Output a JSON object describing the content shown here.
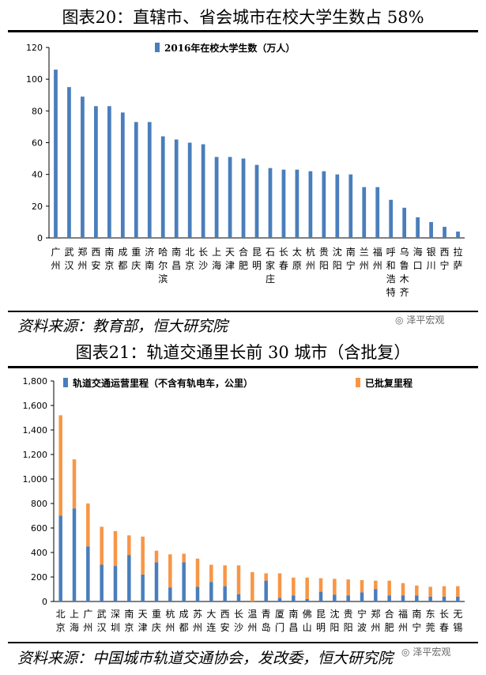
{
  "figure20": {
    "title": "图表20：直辖市、省会城市在校大学生数占 58%",
    "source": "资料来源：教育部，恒大研究院",
    "watermark": "泽平宏观",
    "chart_data": {
      "type": "bar",
      "legend_position": "top-center",
      "grid": false,
      "ylim": [
        0,
        120
      ],
      "yticks": [
        0,
        20,
        40,
        60,
        80,
        100,
        120
      ],
      "categories": [
        "广州",
        "武汉",
        "郑州",
        "西安",
        "南京",
        "成都",
        "重庆",
        "济南",
        "哈尔滨",
        "南昌",
        "北京",
        "长沙",
        "上海",
        "天津",
        "合肥",
        "昆明",
        "石家庄",
        "长春",
        "太原",
        "杭州",
        "贵阳",
        "沈阳",
        "南宁",
        "兰州",
        "福州",
        "呼和浩特",
        "乌鲁木齐",
        "海口",
        "银川",
        "西宁",
        "拉萨"
      ],
      "series": [
        {
          "name": "2016年在校大学生数（万人）",
          "color": "#4a7ebb",
          "values": [
            106,
            95,
            89,
            83,
            83,
            79,
            73,
            73,
            64,
            62,
            60,
            59,
            51,
            51,
            50,
            46,
            44,
            43,
            43,
            42,
            42,
            40,
            40,
            32,
            32,
            24,
            19,
            13,
            10,
            7,
            4
          ]
        }
      ]
    }
  },
  "figure21": {
    "title": "图表21：轨道交通里长前 30 城市（含批复）",
    "source": "资料来源：中国城市轨道交通协会，发改委，恒大研究院",
    "watermark": "泽平宏观",
    "chart_data": {
      "type": "bar",
      "stacked": true,
      "legend_position": "top",
      "grid": false,
      "ylim": [
        0,
        1800
      ],
      "yticks": [
        "0",
        "200",
        "400",
        "600",
        "800",
        "1,000",
        "1,200",
        "1,400",
        "1,600",
        "1,800"
      ],
      "categories": [
        "北京",
        "上海",
        "广州",
        "武汉",
        "深圳",
        "南京",
        "天津",
        "重庆",
        "杭州",
        "成都",
        "苏州",
        "大连",
        "西安",
        "长沙",
        "温州",
        "青岛",
        "厦门",
        "南昌",
        "佛山",
        "昆明",
        "沈阳",
        "贵阳",
        "宁波",
        "郑州",
        "合肥",
        "福州",
        "南宁",
        "东莞",
        "长春",
        "无锡"
      ],
      "series": [
        {
          "name": "轨道交通运营里程（不含有轨电车，公里）",
          "color": "#4a7ebb",
          "values": [
            700,
            760,
            450,
            300,
            290,
            380,
            220,
            320,
            115,
            320,
            120,
            160,
            125,
            60,
            0,
            170,
            30,
            50,
            20,
            80,
            55,
            50,
            75,
            100,
            50,
            50,
            50,
            40,
            40,
            40
          ]
        },
        {
          "name": "已批复里程",
          "color": "#f79646",
          "values": [
            820,
            400,
            350,
            310,
            285,
            160,
            310,
            95,
            270,
            70,
            230,
            140,
            170,
            235,
            240,
            60,
            200,
            145,
            175,
            110,
            130,
            130,
            100,
            70,
            120,
            100,
            80,
            80,
            85,
            85
          ]
        }
      ]
    }
  }
}
